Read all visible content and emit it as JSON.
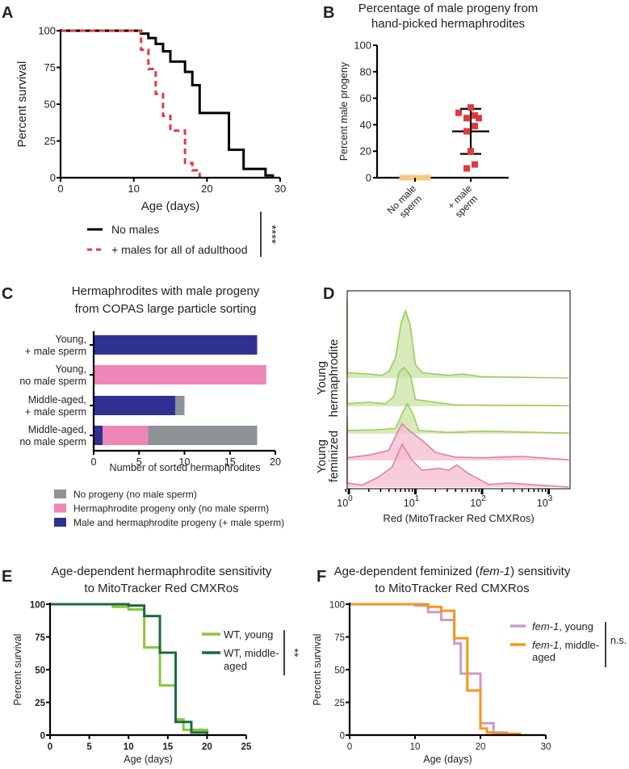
{
  "panels": [
    "A",
    "B",
    "C",
    "D",
    "E",
    "F"
  ],
  "chart_data": [
    {
      "panel": "A",
      "type": "line",
      "title": "",
      "xlabel": "Age (days)",
      "ylabel": "Percent survival",
      "xlim": [
        0,
        30
      ],
      "ylim": [
        0,
        100
      ],
      "xticks": [
        "0",
        "10",
        "20",
        "30"
      ],
      "yticks": [
        "0",
        "25",
        "50",
        "75",
        "100"
      ],
      "grid": false,
      "legend_placement": "bottom",
      "significance": "****",
      "series": [
        {
          "name": "No males",
          "color": "#000000",
          "style": "solid",
          "steps": [
            [
              0,
              100
            ],
            [
              11,
              98
            ],
            [
              12,
              95
            ],
            [
              13,
              91
            ],
            [
              14,
              86
            ],
            [
              15,
              79
            ],
            [
              17,
              72
            ],
            [
              18,
              63
            ],
            [
              19,
              44
            ],
            [
              23,
              19
            ],
            [
              25,
              6
            ],
            [
              28,
              1.5
            ],
            [
              29,
              0
            ]
          ]
        },
        {
          "name": "+ males for all of adulthood",
          "color": "#e03a3e",
          "style": "dashed",
          "steps": [
            [
              0,
              100
            ],
            [
              10.9,
              99
            ],
            [
              11,
              87
            ],
            [
              12,
              74
            ],
            [
              13,
              57
            ],
            [
              14,
              42
            ],
            [
              15,
              32
            ],
            [
              17,
              10
            ],
            [
              18,
              5
            ],
            [
              19,
              0
            ]
          ]
        }
      ]
    },
    {
      "panel": "B",
      "type": "scatter",
      "title": [
        "Percentage of male progeny from",
        "hand-picked hermaphrodites"
      ],
      "ylabel": "Percent male progeny",
      "ylim": [
        0,
        100
      ],
      "yticks": [
        "0",
        "20",
        "40",
        "60",
        "80",
        "100"
      ],
      "categories": [
        [
          "No male",
          "sperm"
        ],
        [
          "+ male",
          "sperm"
        ]
      ],
      "groups": [
        {
          "color": "#f7c97e",
          "values": [
            0,
            0,
            0,
            0,
            0,
            0,
            0,
            0,
            0,
            0,
            0
          ]
        },
        {
          "color": "#e03a3e",
          "values": [
            53,
            49,
            45,
            47,
            45,
            39,
            35,
            20,
            10,
            7
          ],
          "mean": 35,
          "sd_upper": 52,
          "sd_lower": 18
        }
      ]
    },
    {
      "panel": "C",
      "type": "bar",
      "orientation": "horizontal-stacked",
      "title": [
        "Hermaphrodites with male progeny",
        "from COPAS large particle sorting"
      ],
      "xlabel": "Number of sorted hermaphrodites",
      "xlim": [
        0,
        20
      ],
      "xticks": [
        "0",
        "5",
        "10",
        "15",
        "20"
      ],
      "categories": [
        [
          "Young,",
          "+ male sperm"
        ],
        [
          "Young,",
          "no male sperm"
        ],
        [
          "Middle-aged,",
          "+ male sperm"
        ],
        [
          "Middle-aged,",
          "no male sperm"
        ]
      ],
      "legend_placement": "bottom",
      "series": [
        {
          "name": "Male and hermaphrodite progeny (+ male sperm)",
          "color": "#2e3192",
          "values": [
            18,
            0,
            9,
            1
          ]
        },
        {
          "name": "Hermaphrodite progeny only (no male sperm)",
          "color": "#ee86b8",
          "values": [
            0,
            19,
            0,
            5
          ]
        },
        {
          "name": "No progeny (no male sperm)",
          "color": "#8d9296",
          "values": [
            0,
            0,
            1,
            12
          ]
        }
      ],
      "legend_order": [
        2,
        1,
        0
      ]
    },
    {
      "panel": "D",
      "type": "area",
      "subtype": "stacked histogram (log x)",
      "xlabel": "Red (MitoTracker Red CMXRos)",
      "xscale": "log",
      "xlim_log10": [
        -0.12,
        3.3
      ],
      "xticks": [
        {
          "base": "10",
          "exp": "0"
        },
        {
          "base": "10",
          "exp": "1"
        },
        {
          "base": "10",
          "exp": "2"
        },
        {
          "base": "10",
          "exp": "3"
        }
      ],
      "group_labels": [
        [
          "Young",
          "hermaphrodite"
        ],
        [
          "Young",
          "feminized"
        ]
      ],
      "traces": [
        {
          "group": 0,
          "stroke": "#9ccc5a",
          "fill": "#c9e3a4",
          "points": [
            [
              -0.12,
              1.15
            ],
            [
              -0.08,
              0.08
            ],
            [
              0.3,
              0.06
            ],
            [
              0.5,
              0.04
            ],
            [
              0.6,
              0.1
            ],
            [
              0.7,
              0.3
            ],
            [
              0.78,
              0.8
            ],
            [
              0.85,
              1.0
            ],
            [
              0.92,
              0.8
            ],
            [
              1.0,
              0.2
            ],
            [
              1.1,
              0.08
            ],
            [
              1.5,
              0.04
            ],
            [
              1.7,
              0.06
            ],
            [
              2.0,
              0.02
            ],
            [
              3.3,
              0
            ]
          ]
        },
        {
          "group": 0,
          "stroke": "#9ccc5a",
          "fill": "#c9e3a4",
          "points": [
            [
              -0.12,
              0.35
            ],
            [
              -0.08,
              0.04
            ],
            [
              0.3,
              0.06
            ],
            [
              0.55,
              0.04
            ],
            [
              0.68,
              0.15
            ],
            [
              0.75,
              0.5
            ],
            [
              0.83,
              0.58
            ],
            [
              0.93,
              0.45
            ],
            [
              1.0,
              0.1
            ],
            [
              1.3,
              0.06
            ],
            [
              1.6,
              0.02
            ],
            [
              3.3,
              0.01
            ]
          ]
        },
        {
          "group": 0,
          "stroke": "#9ccc5a",
          "fill": "#c9e3a4",
          "points": [
            [
              -0.12,
              0.25
            ],
            [
              -0.08,
              0.05
            ],
            [
              0.4,
              0.06
            ],
            [
              0.7,
              0.08
            ],
            [
              0.8,
              0.3
            ],
            [
              0.88,
              0.45
            ],
            [
              0.96,
              0.3
            ],
            [
              1.05,
              0.05
            ],
            [
              1.5,
              0.02
            ],
            [
              2.0,
              0.04
            ],
            [
              3.3,
              0.01
            ]
          ]
        },
        {
          "group": 1,
          "stroke": "#e17fa6",
          "fill": "#f4bcd0",
          "points": [
            [
              -0.12,
              0.55
            ],
            [
              -0.08,
              0.04
            ],
            [
              0.3,
              0.08
            ],
            [
              0.6,
              0.15
            ],
            [
              0.72,
              0.4
            ],
            [
              0.8,
              0.55
            ],
            [
              0.9,
              0.45
            ],
            [
              1.1,
              0.3
            ],
            [
              1.3,
              0.12
            ],
            [
              1.6,
              0.05
            ],
            [
              2.0,
              0.04
            ],
            [
              2.6,
              0.06
            ],
            [
              3.3,
              0.01
            ]
          ]
        },
        {
          "group": 1,
          "stroke": "#e17fa6",
          "fill": "#f4bcd0",
          "points": [
            [
              -0.12,
              0.8
            ],
            [
              -0.08,
              0.06
            ],
            [
              0.2,
              0.03
            ],
            [
              0.45,
              0.15
            ],
            [
              0.65,
              0.3
            ],
            [
              0.8,
              0.64
            ],
            [
              0.95,
              0.4
            ],
            [
              1.1,
              0.25
            ],
            [
              1.35,
              0.28
            ],
            [
              1.5,
              0.25
            ],
            [
              1.62,
              0.33
            ],
            [
              1.8,
              0.2
            ],
            [
              2.1,
              0.04
            ],
            [
              2.4,
              0.06
            ],
            [
              3.3,
              0
            ]
          ]
        }
      ]
    },
    {
      "panel": "E",
      "type": "line",
      "title": [
        "Age-dependent hermaphrodite sensitivity",
        "to MitoTracker Red CMXRos"
      ],
      "xlabel": "Age (days)",
      "ylabel": "Percent survival",
      "xlim": [
        0,
        25
      ],
      "ylim": [
        0,
        100
      ],
      "xticks": [
        "0",
        "5",
        "10",
        "15",
        "20",
        "25"
      ],
      "yticks": [
        "0",
        "25",
        "50",
        "75",
        "100"
      ],
      "significance": "**",
      "legend_placement": "right",
      "series": [
        {
          "name": "WT, young",
          "color": "#8cc63f",
          "steps": [
            [
              0,
              100
            ],
            [
              8,
              98
            ],
            [
              10,
              96
            ],
            [
              12,
              67
            ],
            [
              14,
              38
            ],
            [
              16,
              12
            ],
            [
              17,
              4
            ],
            [
              18,
              4
            ],
            [
              20,
              0
            ]
          ]
        },
        {
          "name": "WT, middle-aged",
          "name_lines": [
            "WT, middle-",
            "aged"
          ],
          "color": "#1a6b3c",
          "steps": [
            [
              0,
              100
            ],
            [
              10,
              99
            ],
            [
              12,
              91
            ],
            [
              14,
              63
            ],
            [
              16,
              10
            ],
            [
              18,
              2
            ],
            [
              20,
              0
            ]
          ]
        }
      ]
    },
    {
      "panel": "F",
      "type": "line",
      "title": [
        "Age-dependent feminized (",
        "fem-1",
        ") sensitivity",
        "to MitoTracker Red CMXRos"
      ],
      "xlabel": "Age (days)",
      "ylabel": "Percent survival",
      "xlim": [
        0,
        30
      ],
      "ylim": [
        0,
        100
      ],
      "xticks": [
        "0",
        "10",
        "20",
        "30"
      ],
      "yticks": [
        "0",
        "25",
        "50",
        "75",
        "100"
      ],
      "significance": "n.s.",
      "legend_placement": "right",
      "series": [
        {
          "name": "fem-1, young",
          "name_italic": "fem-1",
          "name_rest": ", young",
          "color": "#cc99cc",
          "steps": [
            [
              0,
              100
            ],
            [
              10,
              99
            ],
            [
              12,
              94
            ],
            [
              14,
              88
            ],
            [
              16,
              70
            ],
            [
              17,
              47
            ],
            [
              20,
              9
            ],
            [
              22,
              2
            ],
            [
              24,
              0
            ]
          ]
        },
        {
          "name": "fem-1, middle-aged",
          "name_italic": "fem-1",
          "name_rest": ", middle-",
          "name_rest2": "aged",
          "color": "#f7941d",
          "steps": [
            [
              0,
              100
            ],
            [
              12,
              98
            ],
            [
              14,
              95
            ],
            [
              16,
              74
            ],
            [
              18,
              34
            ],
            [
              20,
              5
            ],
            [
              21,
              2
            ],
            [
              22,
              1
            ],
            [
              26,
              0
            ]
          ]
        }
      ]
    }
  ]
}
